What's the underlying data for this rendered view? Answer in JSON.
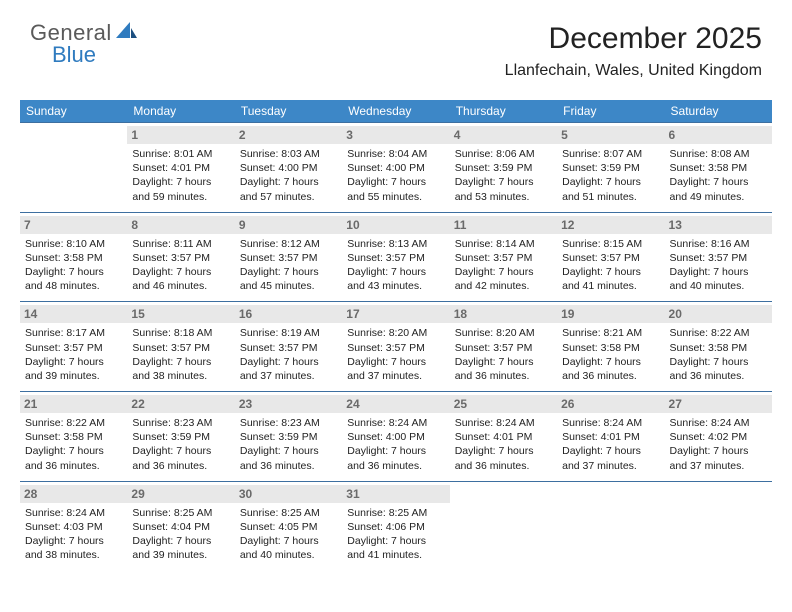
{
  "logo": {
    "line1": "General",
    "line2": "Blue"
  },
  "title": "December 2025",
  "subtitle": "Llanfechain, Wales, United Kingdom",
  "colors": {
    "header_bg": "#3d87c7",
    "header_text": "#ffffff",
    "cell_border": "#3d6fa0",
    "daynum_bg": "#e8e8e8",
    "daynum_text": "#6a6a6a",
    "logo_gray": "#5a5a5a",
    "logo_blue": "#2f7bbf"
  },
  "weekdays": [
    "Sunday",
    "Monday",
    "Tuesday",
    "Wednesday",
    "Thursday",
    "Friday",
    "Saturday"
  ],
  "weeks": [
    [
      null,
      {
        "n": "1",
        "sr": "Sunrise: 8:01 AM",
        "ss": "Sunset: 4:01 PM",
        "d1": "Daylight: 7 hours",
        "d2": "and 59 minutes."
      },
      {
        "n": "2",
        "sr": "Sunrise: 8:03 AM",
        "ss": "Sunset: 4:00 PM",
        "d1": "Daylight: 7 hours",
        "d2": "and 57 minutes."
      },
      {
        "n": "3",
        "sr": "Sunrise: 8:04 AM",
        "ss": "Sunset: 4:00 PM",
        "d1": "Daylight: 7 hours",
        "d2": "and 55 minutes."
      },
      {
        "n": "4",
        "sr": "Sunrise: 8:06 AM",
        "ss": "Sunset: 3:59 PM",
        "d1": "Daylight: 7 hours",
        "d2": "and 53 minutes."
      },
      {
        "n": "5",
        "sr": "Sunrise: 8:07 AM",
        "ss": "Sunset: 3:59 PM",
        "d1": "Daylight: 7 hours",
        "d2": "and 51 minutes."
      },
      {
        "n": "6",
        "sr": "Sunrise: 8:08 AM",
        "ss": "Sunset: 3:58 PM",
        "d1": "Daylight: 7 hours",
        "d2": "and 49 minutes."
      }
    ],
    [
      {
        "n": "7",
        "sr": "Sunrise: 8:10 AM",
        "ss": "Sunset: 3:58 PM",
        "d1": "Daylight: 7 hours",
        "d2": "and 48 minutes."
      },
      {
        "n": "8",
        "sr": "Sunrise: 8:11 AM",
        "ss": "Sunset: 3:57 PM",
        "d1": "Daylight: 7 hours",
        "d2": "and 46 minutes."
      },
      {
        "n": "9",
        "sr": "Sunrise: 8:12 AM",
        "ss": "Sunset: 3:57 PM",
        "d1": "Daylight: 7 hours",
        "d2": "and 45 minutes."
      },
      {
        "n": "10",
        "sr": "Sunrise: 8:13 AM",
        "ss": "Sunset: 3:57 PM",
        "d1": "Daylight: 7 hours",
        "d2": "and 43 minutes."
      },
      {
        "n": "11",
        "sr": "Sunrise: 8:14 AM",
        "ss": "Sunset: 3:57 PM",
        "d1": "Daylight: 7 hours",
        "d2": "and 42 minutes."
      },
      {
        "n": "12",
        "sr": "Sunrise: 8:15 AM",
        "ss": "Sunset: 3:57 PM",
        "d1": "Daylight: 7 hours",
        "d2": "and 41 minutes."
      },
      {
        "n": "13",
        "sr": "Sunrise: 8:16 AM",
        "ss": "Sunset: 3:57 PM",
        "d1": "Daylight: 7 hours",
        "d2": "and 40 minutes."
      }
    ],
    [
      {
        "n": "14",
        "sr": "Sunrise: 8:17 AM",
        "ss": "Sunset: 3:57 PM",
        "d1": "Daylight: 7 hours",
        "d2": "and 39 minutes."
      },
      {
        "n": "15",
        "sr": "Sunrise: 8:18 AM",
        "ss": "Sunset: 3:57 PM",
        "d1": "Daylight: 7 hours",
        "d2": "and 38 minutes."
      },
      {
        "n": "16",
        "sr": "Sunrise: 8:19 AM",
        "ss": "Sunset: 3:57 PM",
        "d1": "Daylight: 7 hours",
        "d2": "and 37 minutes."
      },
      {
        "n": "17",
        "sr": "Sunrise: 8:20 AM",
        "ss": "Sunset: 3:57 PM",
        "d1": "Daylight: 7 hours",
        "d2": "and 37 minutes."
      },
      {
        "n": "18",
        "sr": "Sunrise: 8:20 AM",
        "ss": "Sunset: 3:57 PM",
        "d1": "Daylight: 7 hours",
        "d2": "and 36 minutes."
      },
      {
        "n": "19",
        "sr": "Sunrise: 8:21 AM",
        "ss": "Sunset: 3:58 PM",
        "d1": "Daylight: 7 hours",
        "d2": "and 36 minutes."
      },
      {
        "n": "20",
        "sr": "Sunrise: 8:22 AM",
        "ss": "Sunset: 3:58 PM",
        "d1": "Daylight: 7 hours",
        "d2": "and 36 minutes."
      }
    ],
    [
      {
        "n": "21",
        "sr": "Sunrise: 8:22 AM",
        "ss": "Sunset: 3:58 PM",
        "d1": "Daylight: 7 hours",
        "d2": "and 36 minutes."
      },
      {
        "n": "22",
        "sr": "Sunrise: 8:23 AM",
        "ss": "Sunset: 3:59 PM",
        "d1": "Daylight: 7 hours",
        "d2": "and 36 minutes."
      },
      {
        "n": "23",
        "sr": "Sunrise: 8:23 AM",
        "ss": "Sunset: 3:59 PM",
        "d1": "Daylight: 7 hours",
        "d2": "and 36 minutes."
      },
      {
        "n": "24",
        "sr": "Sunrise: 8:24 AM",
        "ss": "Sunset: 4:00 PM",
        "d1": "Daylight: 7 hours",
        "d2": "and 36 minutes."
      },
      {
        "n": "25",
        "sr": "Sunrise: 8:24 AM",
        "ss": "Sunset: 4:01 PM",
        "d1": "Daylight: 7 hours",
        "d2": "and 36 minutes."
      },
      {
        "n": "26",
        "sr": "Sunrise: 8:24 AM",
        "ss": "Sunset: 4:01 PM",
        "d1": "Daylight: 7 hours",
        "d2": "and 37 minutes."
      },
      {
        "n": "27",
        "sr": "Sunrise: 8:24 AM",
        "ss": "Sunset: 4:02 PM",
        "d1": "Daylight: 7 hours",
        "d2": "and 37 minutes."
      }
    ],
    [
      {
        "n": "28",
        "sr": "Sunrise: 8:24 AM",
        "ss": "Sunset: 4:03 PM",
        "d1": "Daylight: 7 hours",
        "d2": "and 38 minutes."
      },
      {
        "n": "29",
        "sr": "Sunrise: 8:25 AM",
        "ss": "Sunset: 4:04 PM",
        "d1": "Daylight: 7 hours",
        "d2": "and 39 minutes."
      },
      {
        "n": "30",
        "sr": "Sunrise: 8:25 AM",
        "ss": "Sunset: 4:05 PM",
        "d1": "Daylight: 7 hours",
        "d2": "and 40 minutes."
      },
      {
        "n": "31",
        "sr": "Sunrise: 8:25 AM",
        "ss": "Sunset: 4:06 PM",
        "d1": "Daylight: 7 hours",
        "d2": "and 41 minutes."
      },
      null,
      null,
      null
    ]
  ]
}
